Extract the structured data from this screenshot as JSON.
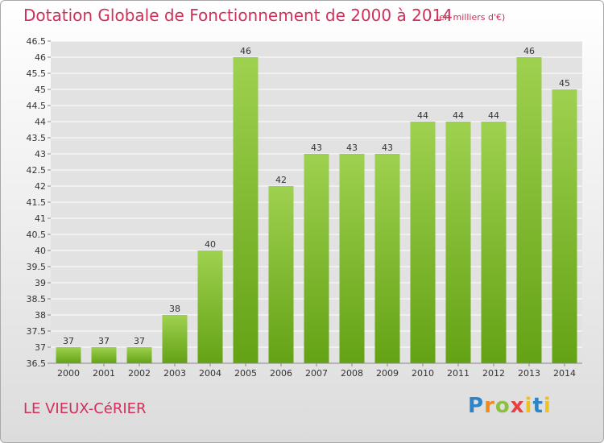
{
  "header": {
    "title": "Dotation Globale de Fonctionnement de 2000 à 2014",
    "subtitle": "(en milliers d'€)"
  },
  "footer": {
    "commune": "LE VIEUX-CéRIER",
    "logo": {
      "p": "P",
      "r": "r",
      "o": "o",
      "x": "x",
      "i": "i",
      "t": "t",
      "i2": "i"
    }
  },
  "colors": {
    "title": "#d0305a",
    "bar_top": "#9ed14f",
    "bar_bottom": "#64a215",
    "grid": "#ffffff"
  },
  "chart_data": {
    "type": "bar",
    "title": "Dotation Globale de Fonctionnement de 2000 à 2014",
    "subtitle": "(en milliers d'€)",
    "xlabel": "",
    "ylabel": "",
    "categories": [
      "2000",
      "2001",
      "2002",
      "2003",
      "2004",
      "2005",
      "2006",
      "2007",
      "2008",
      "2009",
      "2010",
      "2011",
      "2012",
      "2013",
      "2014"
    ],
    "values": [
      37,
      37,
      37,
      38,
      40,
      46,
      42,
      43,
      43,
      43,
      44,
      44,
      44,
      46,
      45
    ],
    "data_labels": [
      "37",
      "37",
      "37",
      "38",
      "40",
      "46",
      "42",
      "43",
      "43",
      "43",
      "44",
      "44",
      "44",
      "46",
      "45"
    ],
    "ylim": [
      36.5,
      46.5
    ],
    "yticks": [
      "36.5",
      "37",
      "37.5",
      "38",
      "38.5",
      "39",
      "39.5",
      "40",
      "40.5",
      "41",
      "41.5",
      "42",
      "42.5",
      "43",
      "43.5",
      "44",
      "44.5",
      "45",
      "45.5",
      "46",
      "46.5"
    ],
    "grid": true,
    "legend": "none"
  }
}
